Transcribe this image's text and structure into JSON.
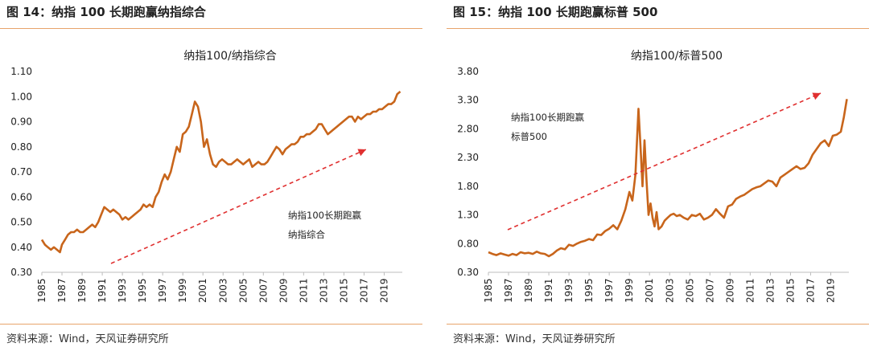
{
  "charts": [
    {
      "figure_title": "图 14：纳指 100 长期跑赢纳指综合",
      "source": "资料来源：Wind，天风证券研究所"
    },
    {
      "figure_title": "图 15：纳指 100 长期跑赢标普 500",
      "source": "资料来源：Wind，天风证券研究所"
    }
  ],
  "chart_data": [
    {
      "type": "line",
      "title": "纳指100/纳指综合",
      "xlabel": "",
      "ylabel": "",
      "ylim": [
        0.3,
        1.1
      ],
      "yticks": [
        "1.10",
        "1.00",
        "0.90",
        "0.80",
        "0.70",
        "0.60",
        "0.50",
        "0.40",
        "0.30"
      ],
      "xticks": [
        "1985",
        "1987",
        "1989",
        "1991",
        "1993",
        "1995",
        "1997",
        "1999",
        "2001",
        "2003",
        "2005",
        "2007",
        "2009",
        "2011",
        "2013",
        "2015",
        "2017",
        "2019"
      ],
      "xlim": [
        1985,
        2020.8
      ],
      "annotation": [
        "纳指100长期跑赢",
        "纳指综合"
      ],
      "line_color": "#c8651b",
      "arrow_color": "#e03030",
      "series": [
        {
          "x": [
            1985.0,
            1985.3,
            1985.6,
            1985.9,
            1986.2,
            1986.5,
            1986.8,
            1987.0,
            1987.3,
            1987.6,
            1987.9,
            1988.2,
            1988.5,
            1988.8,
            1989.1,
            1989.4,
            1989.7,
            1990.0,
            1990.3,
            1990.6,
            1990.9,
            1991.2,
            1991.5,
            1991.8,
            1992.1,
            1992.4,
            1992.7,
            1993.0,
            1993.3,
            1993.6,
            1993.9,
            1994.2,
            1994.5,
            1994.8,
            1995.1,
            1995.4,
            1995.7,
            1996.0,
            1996.3,
            1996.6,
            1996.9,
            1997.2,
            1997.5,
            1997.8,
            1998.1,
            1998.4,
            1998.7,
            1999.0,
            1999.3,
            1999.6,
            1999.9,
            2000.2,
            2000.5,
            2000.8,
            2001.1,
            2001.4,
            2001.7,
            2002.0,
            2002.3,
            2002.6,
            2002.9,
            2003.2,
            2003.5,
            2003.8,
            2004.1,
            2004.4,
            2004.7,
            2005.0,
            2005.3,
            2005.6,
            2005.9,
            2006.2,
            2006.5,
            2006.8,
            2007.1,
            2007.4,
            2007.7,
            2008.0,
            2008.3,
            2008.6,
            2008.9,
            2009.2,
            2009.5,
            2009.8,
            2010.1,
            2010.4,
            2010.7,
            2011.0,
            2011.3,
            2011.6,
            2011.9,
            2012.2,
            2012.5,
            2012.8,
            2013.1,
            2013.4,
            2013.7,
            2014.0,
            2014.3,
            2014.6,
            2014.9,
            2015.2,
            2015.5,
            2015.8,
            2016.1,
            2016.4,
            2016.7,
            2017.0,
            2017.3,
            2017.6,
            2017.9,
            2018.2,
            2018.5,
            2018.8,
            2019.1,
            2019.4,
            2019.7,
            2020.0,
            2020.3,
            2020.6
          ],
          "values": [
            0.43,
            0.41,
            0.4,
            0.39,
            0.4,
            0.39,
            0.38,
            0.41,
            0.43,
            0.45,
            0.46,
            0.46,
            0.47,
            0.46,
            0.46,
            0.47,
            0.48,
            0.49,
            0.48,
            0.5,
            0.53,
            0.56,
            0.55,
            0.54,
            0.55,
            0.54,
            0.53,
            0.51,
            0.52,
            0.51,
            0.52,
            0.53,
            0.54,
            0.55,
            0.57,
            0.56,
            0.57,
            0.56,
            0.6,
            0.62,
            0.66,
            0.69,
            0.67,
            0.7,
            0.75,
            0.8,
            0.78,
            0.85,
            0.86,
            0.88,
            0.93,
            0.98,
            0.96,
            0.9,
            0.8,
            0.83,
            0.77,
            0.73,
            0.72,
            0.74,
            0.75,
            0.74,
            0.73,
            0.73,
            0.74,
            0.75,
            0.74,
            0.73,
            0.74,
            0.75,
            0.72,
            0.73,
            0.74,
            0.73,
            0.73,
            0.74,
            0.76,
            0.78,
            0.8,
            0.79,
            0.77,
            0.79,
            0.8,
            0.81,
            0.81,
            0.82,
            0.84,
            0.84,
            0.85,
            0.85,
            0.86,
            0.87,
            0.89,
            0.89,
            0.87,
            0.85,
            0.86,
            0.87,
            0.88,
            0.89,
            0.9,
            0.91,
            0.92,
            0.92,
            0.9,
            0.92,
            0.91,
            0.92,
            0.93,
            0.93,
            0.94,
            0.94,
            0.95,
            0.95,
            0.96,
            0.97,
            0.97,
            0.98,
            1.01,
            1.02
          ]
        }
      ]
    },
    {
      "type": "line",
      "title": "纳指100/标普500",
      "xlabel": "",
      "ylabel": "",
      "ylim": [
        0.3,
        3.8
      ],
      "yticks": [
        "3.80",
        "3.30",
        "2.80",
        "2.30",
        "1.80",
        "1.30",
        "0.80",
        "0.30"
      ],
      "xticks": [
        "1985",
        "1987",
        "1989",
        "1991",
        "1993",
        "1995",
        "1997",
        "1999",
        "2001",
        "2003",
        "2005",
        "2007",
        "2009",
        "2011",
        "2013",
        "2015",
        "2017",
        "2019"
      ],
      "xlim": [
        1985,
        2020.8
      ],
      "annotation": [
        "纳指100长期跑赢",
        "标普500"
      ],
      "line_color": "#c8651b",
      "arrow_color": "#e03030",
      "series": [
        {
          "x": [
            1985.0,
            1985.4,
            1985.8,
            1986.2,
            1986.6,
            1987.0,
            1987.4,
            1987.8,
            1988.2,
            1988.6,
            1989.0,
            1989.4,
            1989.8,
            1990.2,
            1990.6,
            1991.0,
            1991.4,
            1991.8,
            1992.2,
            1992.6,
            1993.0,
            1993.4,
            1993.8,
            1994.2,
            1994.6,
            1995.0,
            1995.4,
            1995.8,
            1996.2,
            1996.6,
            1997.0,
            1997.4,
            1997.8,
            1998.2,
            1998.6,
            1999.0,
            1999.3,
            1999.6,
            1999.9,
            2000.1,
            2000.3,
            2000.5,
            2000.7,
            2000.9,
            2001.1,
            2001.3,
            2001.5,
            2001.7,
            2001.9,
            2002.2,
            2002.5,
            2002.8,
            2003.1,
            2003.4,
            2003.7,
            2004.0,
            2004.4,
            2004.8,
            2005.2,
            2005.6,
            2006.0,
            2006.4,
            2006.8,
            2007.2,
            2007.6,
            2008.0,
            2008.4,
            2008.8,
            2009.2,
            2009.6,
            2010.0,
            2010.4,
            2010.8,
            2011.2,
            2011.6,
            2012.0,
            2012.4,
            2012.8,
            2013.2,
            2013.6,
            2014.0,
            2014.4,
            2014.8,
            2015.2,
            2015.6,
            2016.0,
            2016.4,
            2016.8,
            2017.2,
            2017.6,
            2018.0,
            2018.4,
            2018.8,
            2019.2,
            2019.6,
            2020.0,
            2020.3,
            2020.6
          ],
          "values": [
            0.65,
            0.62,
            0.6,
            0.63,
            0.61,
            0.59,
            0.62,
            0.6,
            0.65,
            0.63,
            0.64,
            0.62,
            0.66,
            0.63,
            0.62,
            0.58,
            0.62,
            0.68,
            0.72,
            0.7,
            0.78,
            0.76,
            0.8,
            0.83,
            0.85,
            0.88,
            0.86,
            0.96,
            0.95,
            1.02,
            1.06,
            1.12,
            1.05,
            1.2,
            1.4,
            1.7,
            1.55,
            2.0,
            3.15,
            2.5,
            1.8,
            2.6,
            1.9,
            1.3,
            1.5,
            1.25,
            1.1,
            1.35,
            1.05,
            1.1,
            1.2,
            1.25,
            1.3,
            1.32,
            1.28,
            1.3,
            1.25,
            1.22,
            1.3,
            1.28,
            1.32,
            1.22,
            1.25,
            1.3,
            1.4,
            1.32,
            1.25,
            1.45,
            1.48,
            1.58,
            1.62,
            1.65,
            1.7,
            1.75,
            1.78,
            1.8,
            1.85,
            1.9,
            1.88,
            1.8,
            1.95,
            2.0,
            2.05,
            2.1,
            2.15,
            2.1,
            2.12,
            2.2,
            2.35,
            2.45,
            2.55,
            2.6,
            2.5,
            2.68,
            2.7,
            2.75,
            3.0,
            3.32
          ]
        }
      ]
    }
  ]
}
